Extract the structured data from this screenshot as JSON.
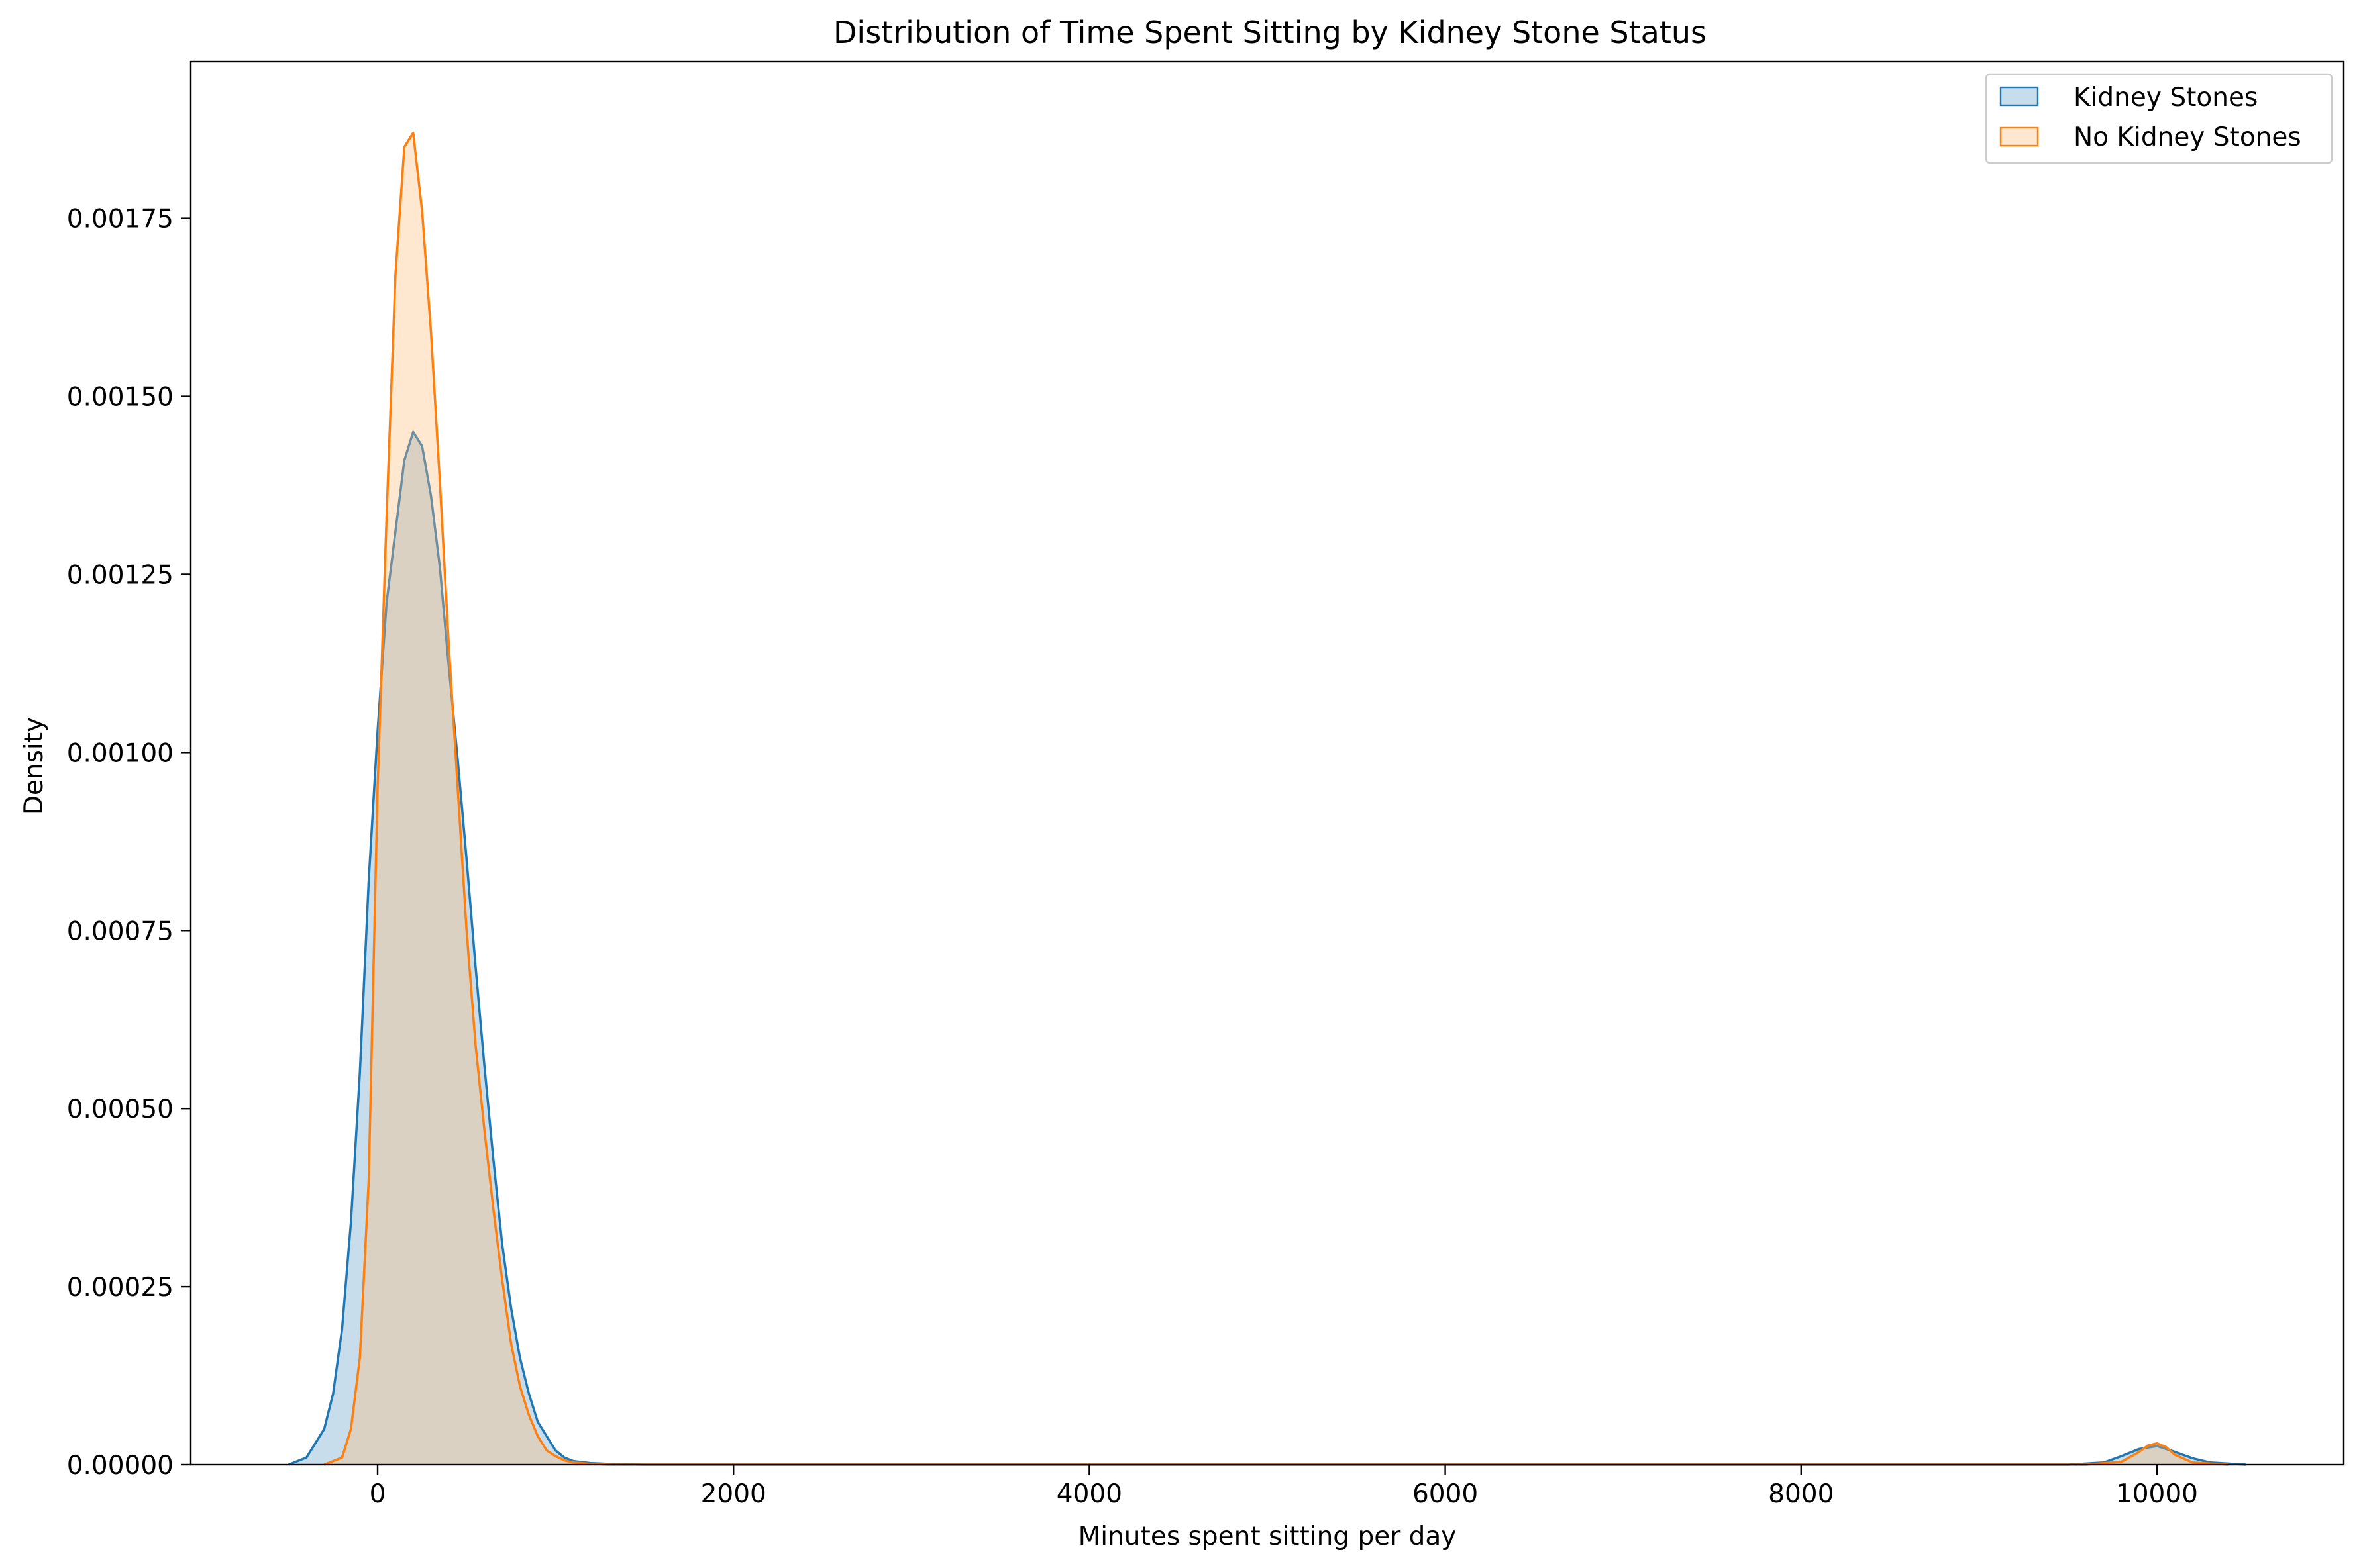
{
  "chart_data": {
    "type": "area",
    "title": "Distribution of Time Spent Sitting by Kidney Stone Status",
    "xlabel": "Minutes spent sitting per day",
    "ylabel": "Density",
    "xlim": [
      -1050,
      11050
    ],
    "ylim": [
      0,
      0.00197
    ],
    "xticks": [
      0,
      2000,
      4000,
      6000,
      8000,
      10000
    ],
    "xtick_labels": [
      "0",
      "2000",
      "4000",
      "6000",
      "8000",
      "10000"
    ],
    "yticks": [
      0,
      0.00025,
      0.0005,
      0.00075,
      0.001,
      0.00125,
      0.0015,
      0.00175
    ],
    "ytick_labels": [
      "0.00000",
      "0.00025",
      "0.00050",
      "0.00075",
      "0.00100",
      "0.00125",
      "0.00150",
      "0.00175"
    ],
    "grid": false,
    "legend_position": "top-right",
    "series": [
      {
        "name": "Kidney Stones",
        "color": "#1f77b4",
        "fill": "#1f77b4",
        "x": [
          -500,
          -400,
          -350,
          -300,
          -250,
          -200,
          -150,
          -100,
          -50,
          0,
          50,
          100,
          150,
          200,
          250,
          300,
          350,
          400,
          450,
          500,
          550,
          600,
          650,
          700,
          750,
          800,
          850,
          900,
          950,
          1000,
          1050,
          1100,
          1200,
          1300,
          1400,
          1500,
          1600,
          9500,
          9700,
          9800,
          9900,
          10000,
          10100,
          10200,
          10300,
          10500
        ],
        "y": [
          0,
          1e-05,
          3e-05,
          5e-05,
          0.0001,
          0.00019,
          0.00034,
          0.00055,
          0.00082,
          0.00103,
          0.00121,
          0.00131,
          0.00141,
          0.00145,
          0.00143,
          0.00136,
          0.00126,
          0.00112,
          0.00099,
          0.00085,
          0.0007,
          0.00056,
          0.00043,
          0.00031,
          0.00022,
          0.00015,
          0.0001,
          6e-05,
          4e-05,
          2e-05,
          1e-05,
          5e-06,
          2e-06,
          1e-06,
          5e-07,
          0,
          0,
          0,
          3e-06,
          1.2e-05,
          2.2e-05,
          2.6e-05,
          1.8e-05,
          9e-06,
          3e-06,
          0
        ]
      },
      {
        "name": "No Kidney Stones",
        "color": "#ff7f0e",
        "fill": "#ffbb78",
        "x": [
          -300,
          -200,
          -150,
          -100,
          -50,
          0,
          50,
          100,
          150,
          200,
          250,
          300,
          350,
          400,
          450,
          500,
          550,
          600,
          650,
          700,
          750,
          800,
          850,
          900,
          950,
          1000,
          1050,
          1100,
          1200,
          1300,
          1400,
          1500,
          9600,
          9800,
          9900,
          9950,
          10000,
          10050,
          10100,
          10200,
          10400
        ],
        "y": [
          0,
          1e-05,
          5e-05,
          0.00015,
          0.0004,
          0.00095,
          0.00133,
          0.00167,
          0.00185,
          0.00187,
          0.00176,
          0.00159,
          0.00138,
          0.00115,
          0.00095,
          0.00075,
          0.00059,
          0.00047,
          0.00036,
          0.00026,
          0.00017,
          0.00011,
          7e-05,
          4e-05,
          2e-05,
          1.2e-05,
          6e-06,
          3e-06,
          1e-06,
          0,
          0,
          0,
          0,
          4e-06,
          1.8e-05,
          2.7e-05,
          3e-05,
          2.5e-05,
          1.4e-05,
          3e-06,
          0
        ]
      }
    ]
  }
}
